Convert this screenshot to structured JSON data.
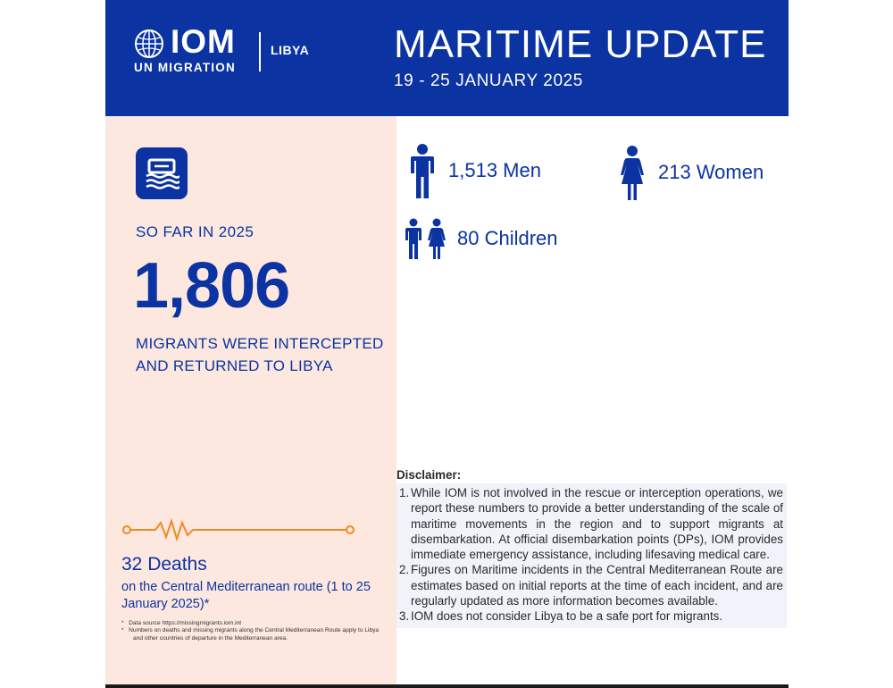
{
  "header": {
    "logo_word": "IOM",
    "logo_sub": "UN MIGRATION",
    "country": "LIBYA",
    "title": "MARITIME UPDATE",
    "dates": "19 - 25 JANUARY 2025"
  },
  "summary": {
    "icon": "boat-icon",
    "period_label": "SO FAR IN 2025",
    "total": "1,806",
    "description": "MIGRANTS WERE INTERCEPTED AND RETURNED TO LIBYA"
  },
  "breakdown": {
    "men": "1,513 Men",
    "women": "213 Women",
    "children": "80 Children"
  },
  "deaths": {
    "icon": "heartbeat-line-icon",
    "headline": "32 Deaths",
    "subtext": "on the Central Mediterranean route (1 to 25 January 2025)*",
    "footnotes": [
      "Data source https://missingmigrants.iom.int",
      "Numbers on deaths and missing migrants along the Central Mediterranean Route apply to Libya and other countries of departure in the Mediterranean area."
    ]
  },
  "disclaimer": {
    "title": "Disclaimer:",
    "items": [
      {
        "num": "1.",
        "text": "While IOM is not involved in the rescue or interception operations, we report these numbers to provide a better understanding of the scale of maritime movements in the region and to support migrants at disembarkation. At official disembarkation points (DPs), IOM provides immediate emergency assistance, including lifesaving medical care."
      },
      {
        "num": "2.",
        "text": "Figures on Maritime incidents in the Central Mediterranean Route are estimates based on initial reports at the time of each incident, and are regularly updated as more information becomes available."
      },
      {
        "num": "3.",
        "text": "IOM does not consider Libya to be a safe port for migrants."
      }
    ]
  },
  "colors": {
    "brand_blue": "#0b33a2",
    "panel_peach": "#fce8df",
    "accent_orange": "#f08a24"
  }
}
